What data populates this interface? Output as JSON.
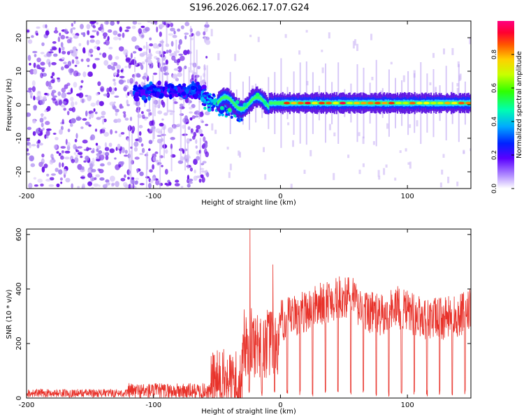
{
  "title": "S196.2026.062.17.07.G24",
  "colors": {
    "background": "#ffffff",
    "axis": "#000000",
    "snr_line": "#e8322a",
    "noise_purple": "#7f1fe6",
    "signal_core": "#e0306a"
  },
  "chart_data": [
    {
      "type": "heatmap",
      "title": "S196.2026.062.17.07.G24",
      "xlabel": "Height of straight line (km)",
      "ylabel": "Frequency (Hz)",
      "xlim": [
        -200,
        150
      ],
      "ylim": [
        -25,
        25
      ],
      "xticks": [
        -200,
        -100,
        0,
        100
      ],
      "yticks": [
        -20,
        -10,
        0,
        10,
        20
      ],
      "colorbar": {
        "label": "Normalized spectral amplitude",
        "range": [
          0,
          1
        ],
        "ticks": [
          0,
          0.2,
          0.4,
          0.6,
          0.8
        ],
        "tick_labels": [
          "0.0",
          "0.2",
          "0.4",
          "0.6",
          "0.8"
        ],
        "colormap": [
          "#ffffff",
          "#7f00ff",
          "#0000ff",
          "#00bfff",
          "#00ff7f",
          "#7fff00",
          "#ffff00",
          "#ff7f00",
          "#ff0000",
          "#ff0080"
        ]
      },
      "features": [
        {
          "name": "noise region",
          "x_range": [
            -200,
            -57
          ],
          "y_range": [
            -25,
            25
          ],
          "amplitude": 0.15
        },
        {
          "name": "scattered signal",
          "x_range": [
            -115,
            -60
          ],
          "y_center": 4,
          "amplitude": 0.25
        },
        {
          "name": "signal ridge",
          "x_range": [
            -50,
            150
          ],
          "y_center": 0.5,
          "amplitude_range": [
            0.3,
            0.95
          ]
        }
      ]
    },
    {
      "type": "line",
      "xlabel": "Height of straight line (km)",
      "ylabel": "SNR (10 * v/v)",
      "xlim": [
        -200,
        150
      ],
      "ylim": [
        0,
        620
      ],
      "xticks": [
        -200,
        -100,
        0,
        100
      ],
      "yticks": [
        0,
        200,
        400,
        600
      ],
      "series": [
        {
          "name": "SNR",
          "color": "#e8322a",
          "segments": [
            {
              "x_range": [
                -200,
                -120
              ],
              "baseline": 18,
              "noise": 15
            },
            {
              "x_range": [
                -120,
                -55
              ],
              "baseline": 25,
              "noise": 30
            },
            {
              "x_range": [
                -55,
                -30
              ],
              "baseline": 60,
              "noise": 120
            },
            {
              "x_range": [
                -30,
                0
              ],
              "baseline": 200,
              "noise": 130
            },
            {
              "x_range": [
                0,
                150
              ],
              "baseline": 320,
              "noise": 80
            }
          ],
          "peaks": [
            {
              "x": -24,
              "y": 620
            },
            {
              "x": -6,
              "y": 490
            },
            {
              "x": -45,
              "y": 110
            }
          ],
          "dropouts_start_x": -35,
          "dropout_spacing_km": 10,
          "dropout_min": 5
        }
      ]
    }
  ]
}
